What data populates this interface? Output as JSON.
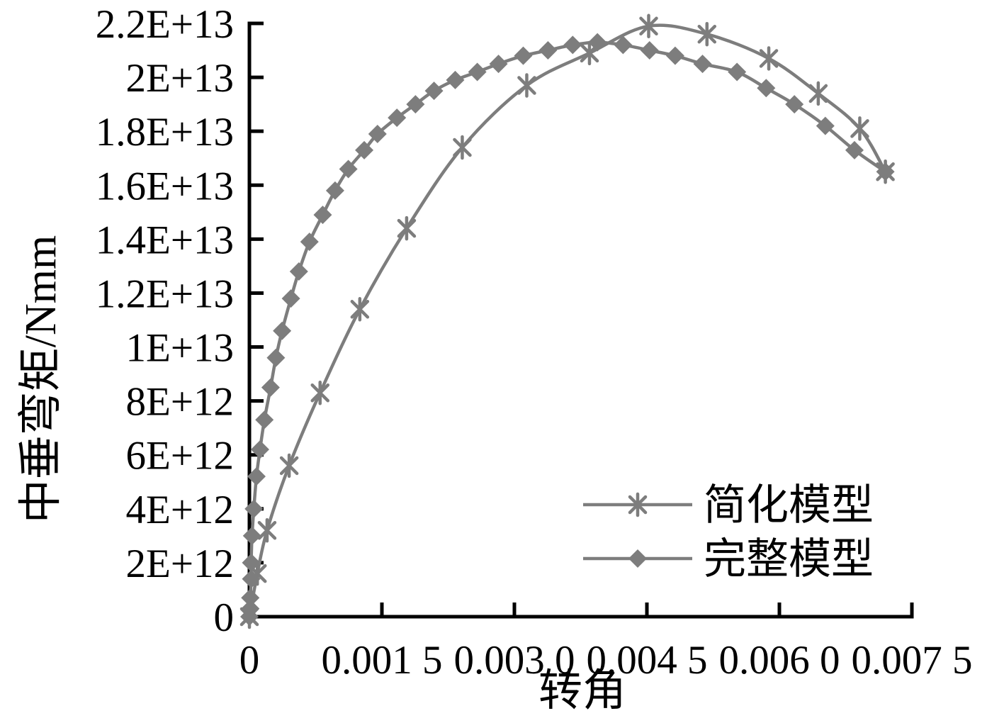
{
  "page": {
    "background": "#ffffff"
  },
  "chart_data": {
    "type": "line",
    "title": "",
    "xlabel": "转角",
    "ylabel": "中垂弯矩/Nmm",
    "xlim": [
      0,
      0.0075
    ],
    "ylim": [
      0,
      22000000000000.0
    ],
    "grid": false,
    "axis_color": "#000000",
    "text_color": "#000000",
    "series_color": "#7d7d7d",
    "x_ticks": [
      0,
      0.0015,
      0.003,
      0.0045,
      0.006,
      0.0075
    ],
    "x_tick_labels": [
      "0",
      "0.001 5",
      "0.003 0",
      "0.004 5",
      "0.006 0",
      "0.007 5"
    ],
    "y_ticks": [
      0,
      2000000000000.0,
      4000000000000.0,
      6000000000000.0,
      8000000000000.0,
      10000000000000.0,
      12000000000000.0,
      14000000000000.0,
      16000000000000.0,
      18000000000000.0,
      20000000000000.0,
      22000000000000.0
    ],
    "y_tick_labels": [
      "0",
      "2E+12",
      "4E+12",
      "6E+12",
      "8E+12",
      "1E+13",
      "1.2E+13",
      "1.4E+13",
      "1.6E+13",
      "1.8E+13",
      "2E+13",
      "2.2E+13"
    ],
    "legend": {
      "position": "inside-lower-right",
      "items": [
        "简化模型",
        "完整模型"
      ]
    },
    "series": [
      {
        "name": "简化模型",
        "marker": "star",
        "points": [
          [
            0,
            0
          ],
          [
            9e-05,
            1600000000000.0
          ],
          [
            0.0002,
            3200000000000.0
          ],
          [
            0.00045,
            5600000000000.0
          ],
          [
            0.0008,
            8300000000000.0
          ],
          [
            0.00125,
            11400000000000.0
          ],
          [
            0.00178,
            14400000000000.0
          ],
          [
            0.00241,
            17400000000000.0
          ],
          [
            0.00314,
            19700000000000.0
          ],
          [
            0.00385,
            20900000000000.0
          ],
          [
            0.00452,
            21900000000000.0
          ],
          [
            0.00518,
            21600000000000.0
          ],
          [
            0.00588,
            20700000000000.0
          ],
          [
            0.00644,
            19400000000000.0
          ],
          [
            0.00691,
            18100000000000.0
          ],
          [
            0.0072,
            16500000000000.0
          ]
        ]
      },
      {
        "name": "完整模型",
        "marker": "diamond",
        "points": [
          [
            0,
            0
          ],
          [
            1e-05,
            300000000000.0
          ],
          [
            1e-05,
            700000000000.0
          ],
          [
            2e-05,
            1400000000000.0
          ],
          [
            2e-05,
            2000000000000.0
          ],
          [
            3e-05,
            3000000000000.0
          ],
          [
            5e-05,
            4000000000000.0
          ],
          [
            8e-05,
            5200000000000.0
          ],
          [
            0.00012,
            6200000000000.0
          ],
          [
            0.00017,
            7300000000000.0
          ],
          [
            0.00024,
            8500000000000.0
          ],
          [
            0.0003,
            9600000000000.0
          ],
          [
            0.00037,
            10600000000000.0
          ],
          [
            0.00047,
            11800000000000.0
          ],
          [
            0.00056,
            12800000000000.0
          ],
          [
            0.00068,
            13900000000000.0
          ],
          [
            0.00083,
            14900000000000.0
          ],
          [
            0.00097,
            15800000000000.0
          ],
          [
            0.00112,
            16600000000000.0
          ],
          [
            0.0013,
            17300000000000.0
          ],
          [
            0.00145,
            17900000000000.0
          ],
          [
            0.00167,
            18500000000000.0
          ],
          [
            0.00188,
            19000000000000.0
          ],
          [
            0.00209,
            19500000000000.0
          ],
          [
            0.00233,
            19900000000000.0
          ],
          [
            0.00258,
            20200000000000.0
          ],
          [
            0.00282,
            20500000000000.0
          ],
          [
            0.0031,
            20800000000000.0
          ],
          [
            0.00338,
            21000000000000.0
          ],
          [
            0.00366,
            21200000000000.0
          ],
          [
            0.00394,
            21300000000000.0
          ],
          [
            0.00423,
            21200000000000.0
          ],
          [
            0.00453,
            21000000000000.0
          ],
          [
            0.00482,
            20800000000000.0
          ],
          [
            0.00513,
            20500000000000.0
          ],
          [
            0.00552,
            20200000000000.0
          ],
          [
            0.00585,
            19600000000000.0
          ],
          [
            0.00617,
            19000000000000.0
          ],
          [
            0.00652,
            18200000000000.0
          ],
          [
            0.00685,
            17300000000000.0
          ],
          [
            0.0072,
            16500000000000.0
          ]
        ]
      }
    ]
  }
}
